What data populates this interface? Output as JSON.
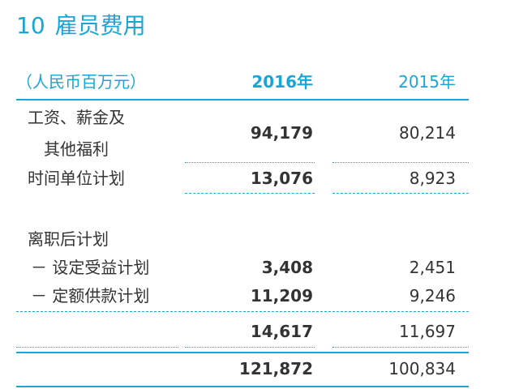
{
  "title": {
    "number": "10",
    "text": "雇员费用"
  },
  "header": {
    "unit": "（人民币百万元）",
    "col2016": "2016年",
    "col2015": "2015年"
  },
  "rows": {
    "salaries_line1": "工资、薪金及",
    "salaries_line2": "其他福利",
    "salaries_2016": "94,179",
    "salaries_2015": "80,214",
    "time_label": "时间单位计划",
    "time_2016": "13,076",
    "time_2015": "8,923",
    "post_label": "离职后计划",
    "db_label": "－ 设定受益计划",
    "db_2016": "3,408",
    "db_2015": "2,451",
    "dc_label": "－ 定额供款计划",
    "dc_2016": "11,209",
    "dc_2015": "9,246",
    "sub_2016": "14,617",
    "sub_2015": "11,697",
    "total_2016": "121,872",
    "total_2015": "100,834"
  }
}
